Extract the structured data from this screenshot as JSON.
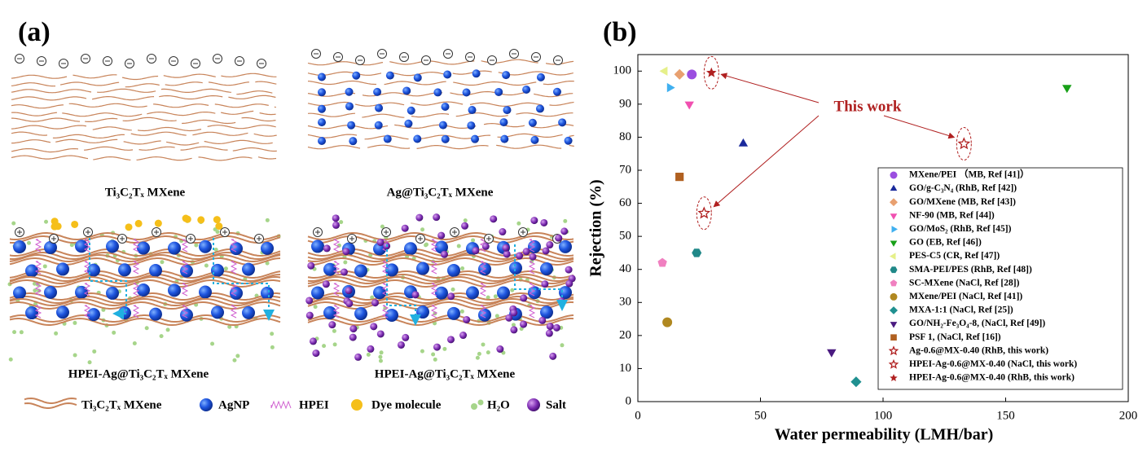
{
  "panel_a": {
    "label": "(a)",
    "captions": [
      "Ti₃C₂Tₓ MXene",
      "Ag@Ti₃C₂Tₓ MXene",
      "HPEI-Ag@Ti₃C₂Tₓ MXene",
      "HPEI-Ag@Ti₃C₂Tₓ MXene"
    ],
    "legend": [
      "Ti₃C₂Tₓ MXene",
      "AgNP",
      "HPEI",
      "Dye molecule",
      "H₂O",
      "Salt"
    ]
  },
  "chart_data": {
    "type": "scatter",
    "panel_label": "(b)",
    "x_label": "Water permeability (LMH/bar)",
    "y_label": "Rejection (%)",
    "xlim": [
      0,
      200
    ],
    "xticks": [
      0,
      50,
      100,
      150,
      200
    ],
    "ylim": [
      0,
      105
    ],
    "yticks": [
      0,
      10,
      20,
      30,
      40,
      50,
      60,
      70,
      80,
      90,
      100
    ],
    "annotation": "This work",
    "series": [
      {
        "name": "MXene/PEI （MB, Ref [41]）",
        "color": "#9b4ee0",
        "marker": "circle",
        "x": [
          22
        ],
        "y": [
          99
        ]
      },
      {
        "name": "GO/g-C₃N₄ (RhB, Ref [42])",
        "color": "#1a2a9c",
        "marker": "triangle-up",
        "x": [
          43
        ],
        "y": [
          78
        ]
      },
      {
        "name": "GO/MXene (MB, Ref [43])",
        "color": "#e8a070",
        "marker": "diamond",
        "x": [
          17
        ],
        "y": [
          99
        ]
      },
      {
        "name": "NF-90 (MB, Ref [44])",
        "color": "#f050b0",
        "marker": "triangle-down",
        "x": [
          21
        ],
        "y": [
          90
        ]
      },
      {
        "name": "GO/MoS₂ (RhB, Ref [45])",
        "color": "#40b0f0",
        "marker": "triangle-right",
        "x": [
          13
        ],
        "y": [
          95
        ]
      },
      {
        "name": "GO (EB, Ref [46])",
        "color": "#18a018",
        "marker": "triangle-down",
        "x": [
          175
        ],
        "y": [
          95
        ]
      },
      {
        "name": "PES-C5 (CR, Ref [47])",
        "color": "#e6f08a",
        "marker": "triangle-left",
        "x": [
          11
        ],
        "y": [
          100
        ]
      },
      {
        "name": "SMA-PEI/PES (RhB, Ref [48])",
        "color": "#208888",
        "marker": "hexagon",
        "x": [
          24
        ],
        "y": [
          45
        ]
      },
      {
        "name": "SC-MXene (NaCl, Ref [28])",
        "color": "#f080c0",
        "marker": "pentagon",
        "x": [
          10
        ],
        "y": [
          42
        ]
      },
      {
        "name": "MXene/PEI (NaCl, Ref [41])",
        "color": "#b08820",
        "marker": "circle",
        "x": [
          12
        ],
        "y": [
          24
        ]
      },
      {
        "name": "MXA-1:1 (NaCl, Ref [25])",
        "color": "#209090",
        "marker": "diamond",
        "x": [
          89
        ],
        "y": [
          6
        ]
      },
      {
        "name": "GO/NH₂-Fe₃O₄-8, (NaCl, Ref [49])",
        "color": "#4a1a80",
        "marker": "triangle-down",
        "x": [
          79
        ],
        "y": [
          15
        ]
      },
      {
        "name": "PSF 1,  (NaCl, Ref [16])",
        "color": "#b06020",
        "marker": "square",
        "x": [
          17
        ],
        "y": [
          68
        ]
      },
      {
        "name": "Ag-0.6@MX-0.40 (RhB, this work)",
        "color": "#b02020",
        "marker": "star-open",
        "x": [
          133
        ],
        "y": [
          78
        ]
      },
      {
        "name": "HPEI-Ag-0.6@MX-0.40 (NaCl, this work)",
        "color": "#b02020",
        "marker": "star-open",
        "x": [
          27
        ],
        "y": [
          57
        ]
      },
      {
        "name": "HPEI-Ag-0.6@MX-0.40 (RhB, this work)",
        "color": "#b02020",
        "marker": "star",
        "x": [
          30
        ],
        "y": [
          99.5
        ]
      }
    ]
  }
}
